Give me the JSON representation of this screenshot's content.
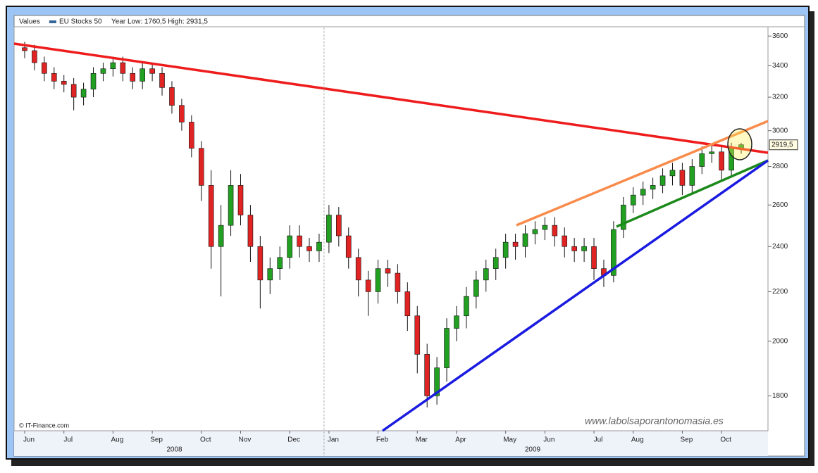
{
  "chart_data": {
    "type": "candlestick",
    "legend_label": "Values",
    "subtitle": "Year Low: 1760,5 High: 2931,5",
    "source": "© IT-Finance.com",
    "watermark": "www.labolsaporantonomasia.es",
    "log_scale": true,
    "up_color": "#22a022",
    "down_color": "#e02424",
    "ylim": [
      1683,
      3665
    ],
    "yticks": [
      1800,
      2000,
      2200,
      2400,
      2600,
      2800,
      3000,
      3200,
      3400,
      3600
    ],
    "last_price": {
      "value": 2919.5,
      "label": "2919,5"
    },
    "years": [
      "2008",
      "2009"
    ],
    "categories": [
      "Jun",
      null,
      null,
      null,
      "Jul",
      null,
      null,
      null,
      null,
      "Aug",
      null,
      null,
      null,
      "Sep",
      null,
      null,
      null,
      null,
      "Oct",
      null,
      null,
      null,
      "Nov",
      null,
      null,
      null,
      null,
      "Dec",
      null,
      null,
      null,
      "Jan",
      null,
      null,
      null,
      null,
      "Feb",
      null,
      null,
      null,
      "Mar",
      null,
      null,
      null,
      "Apr",
      null,
      null,
      null,
      null,
      "May",
      null,
      null,
      null,
      "Jun",
      null,
      null,
      null,
      null,
      "Jul",
      null,
      null,
      null,
      "Aug",
      null,
      null,
      null,
      null,
      "Sep",
      null,
      null,
      null,
      "Oct",
      null,
      null
    ],
    "series": [
      {
        "name": "EU Stocks 50",
        "color": "#336699",
        "open": [
          3520,
          3500,
          3420,
          3350,
          3300,
          3280,
          3200,
          3250,
          3350,
          3380,
          3420,
          3350,
          3300,
          3380,
          3350,
          3260,
          3150,
          3050,
          2900,
          2700,
          2400,
          2500,
          2700,
          2550,
          2400,
          2250,
          2300,
          2350,
          2450,
          2400,
          2380,
          2420,
          2550,
          2450,
          2350,
          2250,
          2200,
          2300,
          2280,
          2200,
          2100,
          1950,
          1800,
          1900,
          2050,
          2100,
          2180,
          2250,
          2300,
          2350,
          2420,
          2400,
          2460,
          2480,
          2500,
          2450,
          2400,
          2380,
          2400,
          2300,
          2270,
          2480,
          2600,
          2650,
          2680,
          2700,
          2750,
          2780,
          2700,
          2800,
          2870,
          2880,
          2780,
          2900
        ],
        "high": [
          3560,
          3540,
          3460,
          3390,
          3340,
          3320,
          3290,
          3390,
          3420,
          3460,
          3460,
          3390,
          3420,
          3420,
          3390,
          3300,
          3190,
          3090,
          2940,
          2780,
          2600,
          2780,
          2760,
          2600,
          2450,
          2350,
          2400,
          2500,
          2500,
          2440,
          2460,
          2600,
          2590,
          2490,
          2390,
          2290,
          2340,
          2340,
          2320,
          2240,
          2140,
          1990,
          1940,
          2090,
          2140,
          2220,
          2290,
          2340,
          2390,
          2460,
          2460,
          2500,
          2520,
          2540,
          2540,
          2490,
          2440,
          2440,
          2440,
          2340,
          2520,
          2640,
          2690,
          2720,
          2740,
          2790,
          2820,
          2820,
          2840,
          2910,
          2920,
          2920,
          2931.5,
          2930
        ],
        "low": [
          3450,
          3370,
          3300,
          3250,
          3230,
          3120,
          3150,
          3200,
          3300,
          3330,
          3300,
          3250,
          3250,
          3300,
          3210,
          3100,
          3000,
          2850,
          2620,
          2300,
          2180,
          2450,
          2500,
          2330,
          2130,
          2190,
          2250,
          2300,
          2350,
          2330,
          2330,
          2370,
          2400,
          2300,
          2180,
          2100,
          2150,
          2220,
          2150,
          2040,
          1880,
          1760.5,
          1770,
          1850,
          2000,
          2050,
          2130,
          2200,
          2250,
          2300,
          2340,
          2350,
          2410,
          2430,
          2400,
          2350,
          2330,
          2330,
          2250,
          2220,
          2240,
          2440,
          2560,
          2600,
          2630,
          2660,
          2700,
          2650,
          2660,
          2760,
          2820,
          2730,
          2740,
          2870
        ],
        "close": [
          3500,
          3420,
          3350,
          3300,
          3280,
          3200,
          3250,
          3350,
          3380,
          3420,
          3350,
          3300,
          3380,
          3350,
          3260,
          3150,
          3050,
          2900,
          2700,
          2400,
          2500,
          2700,
          2550,
          2400,
          2250,
          2300,
          2350,
          2450,
          2400,
          2380,
          2420,
          2550,
          2450,
          2350,
          2250,
          2200,
          2300,
          2280,
          2200,
          2100,
          1950,
          1800,
          1900,
          2050,
          2100,
          2180,
          2250,
          2300,
          2350,
          2420,
          2400,
          2460,
          2480,
          2500,
          2450,
          2400,
          2380,
          2400,
          2300,
          2270,
          2480,
          2600,
          2650,
          2680,
          2700,
          2750,
          2780,
          2700,
          2800,
          2870,
          2880,
          2780,
          2900,
          2920
        ]
      }
    ]
  }
}
